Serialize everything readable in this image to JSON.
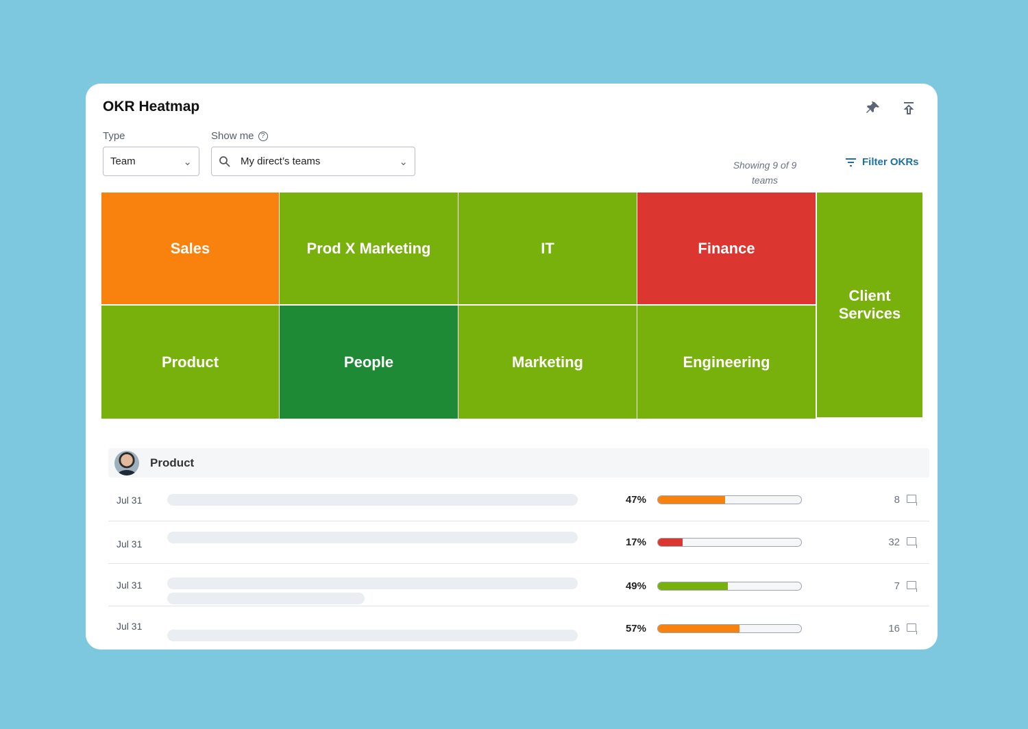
{
  "header": {
    "title": "OKR Heatmap",
    "pin_icon": "pin-icon",
    "export_icon": "export-icon"
  },
  "filters": {
    "type_label": "Type",
    "type_value": "Team",
    "show_label": "Show me",
    "show_value": "My direct’s teams",
    "showing_text": "Showing 9 of 9 teams",
    "filter_button": "Filter OKRs"
  },
  "colors": {
    "orange": "#f9820f",
    "green": "#79b10c",
    "dark_green": "#1f8a36",
    "red": "#dc3631"
  },
  "heatmap": [
    {
      "name": "Sales",
      "status": "orange"
    },
    {
      "name": "Prod X Marketing",
      "status": "green"
    },
    {
      "name": "IT",
      "status": "green"
    },
    {
      "name": "Finance",
      "status": "red"
    },
    {
      "name": "Client Services",
      "status": "green"
    },
    {
      "name": "Product",
      "status": "green"
    },
    {
      "name": "People",
      "status": "dark_green"
    },
    {
      "name": "Marketing",
      "status": "green"
    },
    {
      "name": "Engineering",
      "status": "green"
    }
  ],
  "details": {
    "team": "Product",
    "rows": [
      {
        "date": "Jul 31",
        "progress": "47%",
        "value": 47,
        "color": "#f9820f",
        "comments": "8"
      },
      {
        "date": "Jul 31",
        "progress": "17%",
        "value": 17,
        "color": "#dc3631",
        "comments": "32"
      },
      {
        "date": "Jul 31",
        "progress": "49%",
        "value": 49,
        "color": "#79b10c",
        "comments": "7"
      },
      {
        "date": "Jul 31",
        "progress": "57%",
        "value": 57,
        "color": "#f9820f",
        "comments": "16"
      }
    ]
  }
}
